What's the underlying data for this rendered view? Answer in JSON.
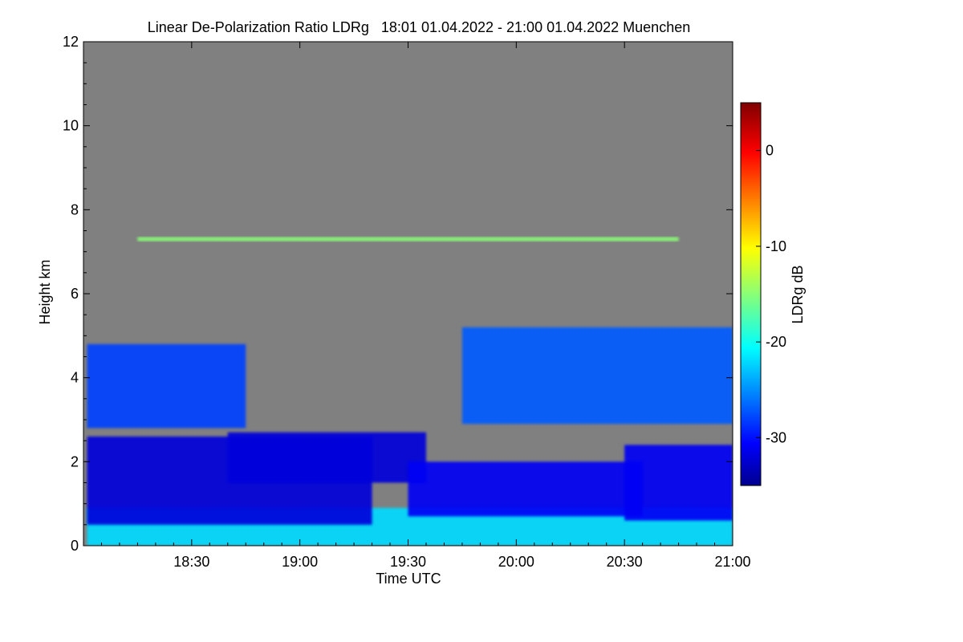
{
  "chart_data": {
    "type": "heatmap",
    "title": "Linear De-Polarization Ratio LDRg   18:01 01.04.2022 - 21:00 01.04.2022 Muenchen",
    "xlabel": "Time UTC",
    "ylabel": "Height km",
    "x_range": [
      "18:01",
      "21:00"
    ],
    "x_ticks": [
      "18:30",
      "19:00",
      "19:30",
      "20:00",
      "20:30",
      "21:00"
    ],
    "ylim": [
      0,
      12
    ],
    "y_ticks": [
      0,
      2,
      4,
      6,
      8,
      10,
      12
    ],
    "colorbar": {
      "label": "LDRg dB",
      "range": [
        -35,
        5
      ],
      "ticks": [
        0,
        -10,
        -20,
        -30
      ],
      "colormap": "jet"
    },
    "no_data_color": "#808080",
    "features": [
      {
        "time_start": "18:01",
        "time_end": "21:00",
        "height_bottom_km": 0.0,
        "height_top_km": 0.9,
        "ldr_db": -22
      },
      {
        "time_start": "18:01",
        "time_end": "19:20",
        "height_bottom_km": 0.5,
        "height_top_km": 2.6,
        "ldr_db": -32
      },
      {
        "time_start": "18:01",
        "time_end": "18:45",
        "height_bottom_km": 2.8,
        "height_top_km": 4.8,
        "ldr_db": -28
      },
      {
        "time_start": "18:40",
        "time_end": "19:35",
        "height_bottom_km": 1.5,
        "height_top_km": 2.7,
        "ldr_db": -32
      },
      {
        "time_start": "19:30",
        "time_end": "20:35",
        "height_bottom_km": 0.7,
        "height_top_km": 2.0,
        "ldr_db": -31
      },
      {
        "time_start": "19:45",
        "time_end": "21:00",
        "height_bottom_km": 2.9,
        "height_top_km": 5.2,
        "ldr_db": -27
      },
      {
        "time_start": "20:30",
        "time_end": "21:00",
        "height_bottom_km": 0.6,
        "height_top_km": 2.4,
        "ldr_db": -31
      },
      {
        "time_start": "18:15",
        "time_end": "20:45",
        "height_bottom_km": 7.25,
        "height_top_km": 7.35,
        "ldr_db": -15
      }
    ]
  }
}
